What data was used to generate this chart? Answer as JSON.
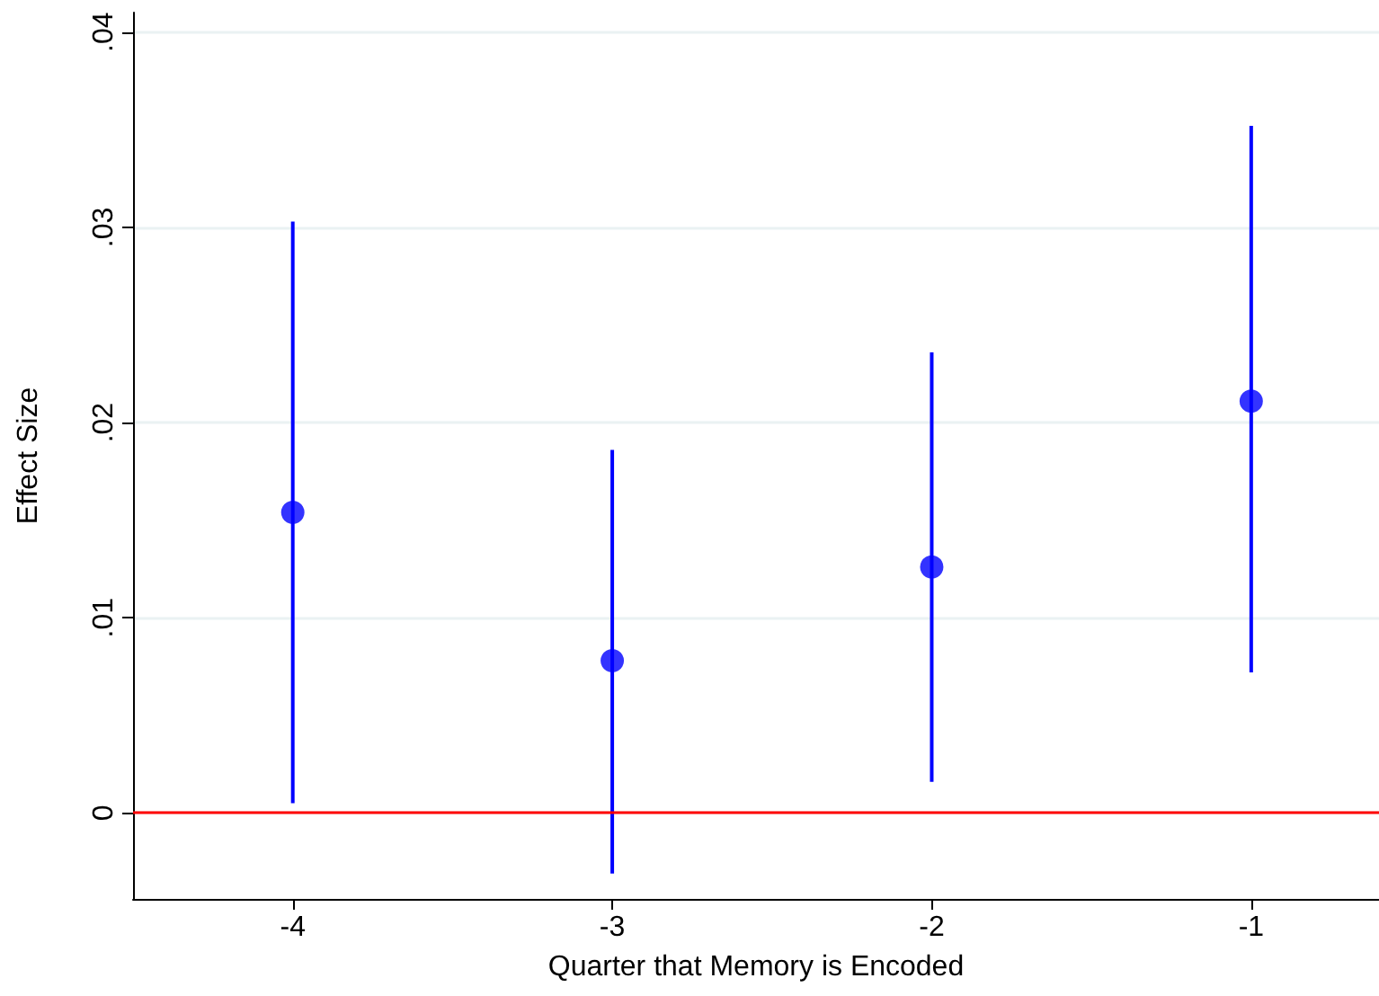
{
  "chart_data": {
    "type": "scatter",
    "xlabel": "Quarter that Memory is Encoded",
    "ylabel": "Effect Size",
    "x": [
      -4,
      -3,
      -2,
      -1
    ],
    "series": [
      {
        "color": "#0000ff",
        "values": [
          0.0154,
          0.0078,
          0.0126,
          0.0211
        ],
        "errors": [
          [
            0.0005,
            0.0303
          ],
          [
            -0.0031,
            0.0186
          ],
          [
            0.0016,
            0.0236
          ],
          [
            0.0072,
            0.0352
          ]
        ]
      }
    ],
    "xlim": [
      -4.5,
      -0.6
    ],
    "xticks": [
      -4,
      -3,
      -2,
      -1
    ],
    "ylim": [
      -0.0044,
      0.041
    ],
    "yticks": [
      {
        "value": 0,
        "label": "0"
      },
      {
        "value": 0.01,
        "label": ".01"
      },
      {
        "value": 0.02,
        "label": ".02"
      },
      {
        "value": 0.03,
        "label": ".03"
      },
      {
        "value": 0.04,
        "label": ".04"
      }
    ],
    "ref_lines": [
      {
        "axis": "y",
        "value": 0,
        "color": "#ff0000"
      }
    ],
    "grid": "y",
    "marker": "circle"
  }
}
